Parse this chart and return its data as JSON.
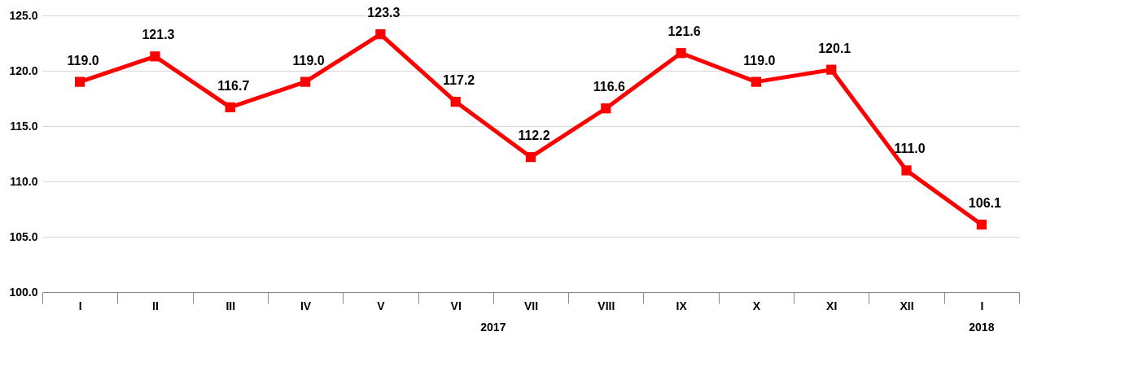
{
  "chart_data": {
    "type": "line",
    "categories": [
      "I",
      "II",
      "III",
      "IV",
      "V",
      "VI",
      "VII",
      "VIII",
      "IX",
      "X",
      "XI",
      "XII",
      "I"
    ],
    "series": [
      {
        "color": "#ff0000",
        "values": [
          119.0,
          121.3,
          116.7,
          119.0,
          123.3,
          117.2,
          112.2,
          116.6,
          121.6,
          119.0,
          120.1,
          111.0,
          106.1
        ],
        "value_labels": [
          "119.0",
          "121.3",
          "116.7",
          "119.0",
          "123.3",
          "117.2",
          "112.2",
          "116.6",
          "121.6",
          "119.0",
          "120.1",
          "111.0",
          "106.1"
        ]
      }
    ],
    "ylim": [
      100,
      125
    ],
    "yticks": [
      {
        "value": 100,
        "label": "100.0"
      },
      {
        "value": 105,
        "label": "105.0"
      },
      {
        "value": 110,
        "label": "110.0"
      },
      {
        "value": 115,
        "label": "115.0"
      },
      {
        "value": 120,
        "label": "120.0"
      },
      {
        "value": 125,
        "label": "125.0"
      }
    ],
    "grid": "y",
    "marker": "square",
    "line_style": "solid",
    "annotations": [
      "2017",
      "2018"
    ]
  }
}
